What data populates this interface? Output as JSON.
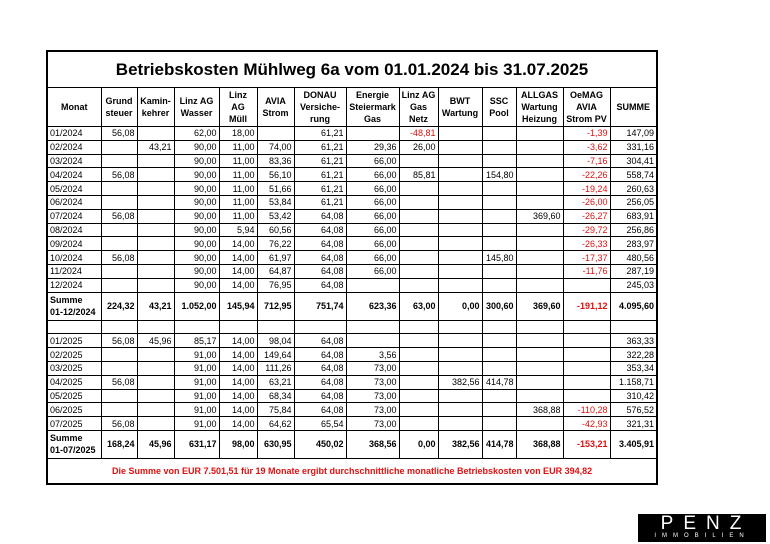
{
  "title": "Betriebskosten Mühlweg 6a vom 01.01.2024 bis 31.07.2025",
  "header": [
    "Monat",
    "Grund\nsteuer",
    "Kamin-\nkehrer",
    "Linz AG\nWasser",
    "Linz AG\nMüll",
    "AVIA\nStrom",
    "DONAU\nVersiche-\nrung",
    "Energie\nSteiermark\nGas",
    "Linz AG\nGas\nNetz",
    "BWT\nWartung",
    "SSC\nPool",
    "ALLGAS\nWartung\nHeizung",
    "OeMAG\nAVIA\nStrom PV",
    "SUMME"
  ],
  "sections": [
    {
      "rows": [
        [
          "01/2024",
          "56,08",
          null,
          "62,00",
          "18,00",
          null,
          "61,21",
          null,
          "-48,81",
          null,
          null,
          null,
          "-1,39",
          "147,09"
        ],
        [
          "02/2024",
          null,
          "43,21",
          "90,00",
          "11,00",
          "74,00",
          "61,21",
          "29,36",
          "26,00",
          null,
          null,
          null,
          "-3,62",
          "331,16"
        ],
        [
          "03/2024",
          null,
          null,
          "90,00",
          "11,00",
          "83,36",
          "61,21",
          "66,00",
          null,
          null,
          null,
          null,
          "-7,16",
          "304,41"
        ],
        [
          "04/2024",
          "56,08",
          null,
          "90,00",
          "11,00",
          "56,10",
          "61,21",
          "66,00",
          "85,81",
          null,
          "154,80",
          null,
          "-22,26",
          "558,74"
        ],
        [
          "05/2024",
          null,
          null,
          "90,00",
          "11,00",
          "51,66",
          "61,21",
          "66,00",
          null,
          null,
          null,
          null,
          "-19,24",
          "260,63"
        ],
        [
          "06/2024",
          null,
          null,
          "90,00",
          "11,00",
          "53,84",
          "61,21",
          "66,00",
          null,
          null,
          null,
          null,
          "-26,00",
          "256,05"
        ],
        [
          "07/2024",
          "56,08",
          null,
          "90,00",
          "11,00",
          "53,42",
          "64,08",
          "66,00",
          null,
          null,
          null,
          "369,60",
          "-26,27",
          "683,91"
        ],
        [
          "08/2024",
          null,
          null,
          "90,00",
          "5,94",
          "60,56",
          "64,08",
          "66,00",
          null,
          null,
          null,
          null,
          "-29,72",
          "256,86"
        ],
        [
          "09/2024",
          null,
          null,
          "90,00",
          "14,00",
          "76,22",
          "64,08",
          "66,00",
          null,
          null,
          null,
          null,
          "-26,33",
          "283,97"
        ],
        [
          "10/2024",
          "56,08",
          null,
          "90,00",
          "14,00",
          "61,97",
          "64,08",
          "66,00",
          null,
          null,
          "145,80",
          null,
          "-17,37",
          "480,56"
        ],
        [
          "11/2024",
          null,
          null,
          "90,00",
          "14,00",
          "64,87",
          "64,08",
          "66,00",
          null,
          null,
          null,
          null,
          "-11,76",
          "287,19"
        ],
        [
          "12/2024",
          null,
          null,
          "90,00",
          "14,00",
          "76,95",
          "64,08",
          null,
          null,
          null,
          null,
          null,
          null,
          "245,03"
        ]
      ],
      "sum": [
        "Summe\n01-12/2024",
        "224,32",
        "43,21",
        "1.052,00",
        "145,94",
        "712,95",
        "751,74",
        "623,36",
        "63,00",
        "0,00",
        "300,60",
        "369,60",
        "-191,12",
        "4.095,60"
      ]
    },
    {
      "rows": [
        [
          "01/2025",
          "56,08",
          "45,96",
          "85,17",
          "14,00",
          "98,04",
          "64,08",
          null,
          null,
          null,
          null,
          null,
          null,
          "363,33"
        ],
        [
          "02/2025",
          null,
          null,
          "91,00",
          "14,00",
          "149,64",
          "64,08",
          "3,56",
          null,
          null,
          null,
          null,
          null,
          "322,28"
        ],
        [
          "03/2025",
          null,
          null,
          "91,00",
          "14,00",
          "111,26",
          "64,08",
          "73,00",
          null,
          null,
          null,
          null,
          null,
          "353,34"
        ],
        [
          "04/2025",
          "56,08",
          null,
          "91,00",
          "14,00",
          "63,21",
          "64,08",
          "73,00",
          null,
          "382,56",
          "414,78",
          null,
          null,
          "1.158,71"
        ],
        [
          "05/2025",
          null,
          null,
          "91,00",
          "14,00",
          "68,34",
          "64,08",
          "73,00",
          null,
          null,
          null,
          null,
          null,
          "310,42"
        ],
        [
          "06/2025",
          null,
          null,
          "91,00",
          "14,00",
          "75,84",
          "64,08",
          "73,00",
          null,
          null,
          null,
          "368,88",
          "-110,28",
          "576,52"
        ],
        [
          "07/2025",
          "56,08",
          null,
          "91,00",
          "14,00",
          "64,62",
          "65,54",
          "73,00",
          null,
          null,
          null,
          null,
          "-42,93",
          "321,31"
        ]
      ],
      "sum": [
        "Summe\n01-07/2025",
        "168,24",
        "45,96",
        "631,17",
        "98,00",
        "630,95",
        "450,02",
        "368,56",
        "0,00",
        "382,56",
        "414,78",
        "368,88",
        "-153,21",
        "3.405,91"
      ]
    }
  ],
  "footer": "Die Summe von EUR 7.501,51 für 19 Monate ergibt durchschnittliche monatliche Betriebskosten von EUR 394,82",
  "logo": {
    "name": "PENZ",
    "tagline": "IMMOBILIEN"
  }
}
